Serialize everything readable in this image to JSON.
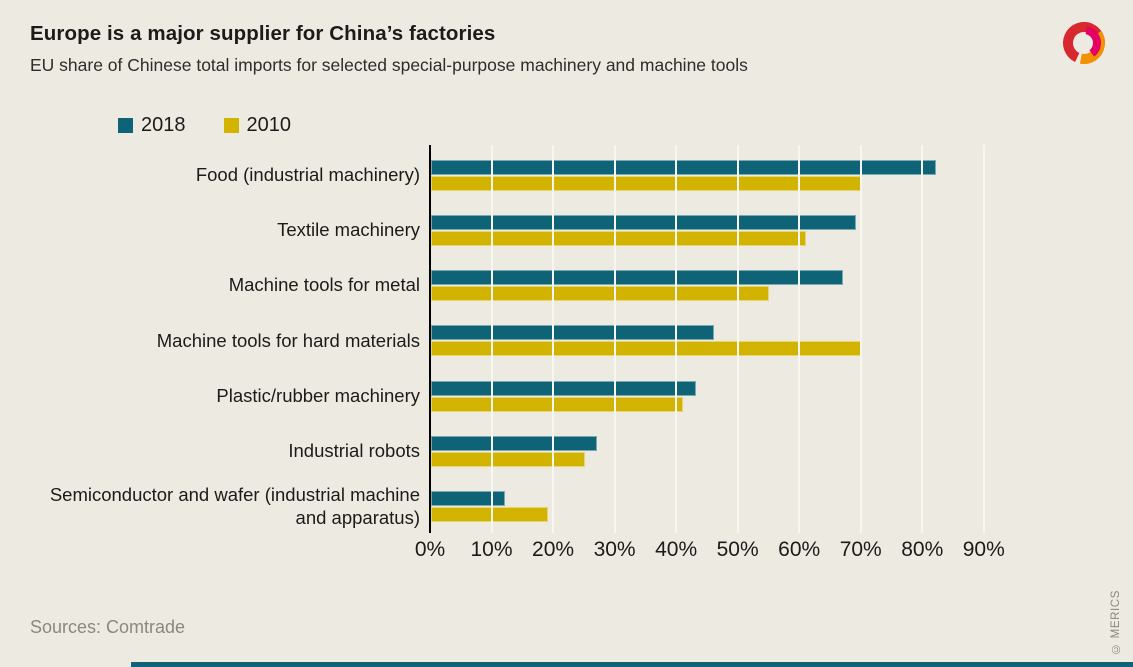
{
  "header": {
    "title": "Europe is a major supplier for China’s factories",
    "subtitle": "EU share of Chinese total imports for selected special-purpose machinery and machine tools"
  },
  "footer": {
    "sources": "Sources: Comtrade",
    "copyright": "© MERICS"
  },
  "brand": {
    "teal": "#0E6377",
    "yellow": "#D1B300",
    "background": "#EDEAE2",
    "text_dark": "#1C1B19",
    "text_gray": "#8D887E",
    "gridline": "#F8F6F1",
    "axis": "#000000",
    "logo_red": "#D7282F",
    "logo_orange": "#F39200",
    "logo_magenta": "#E50064"
  },
  "chart_data": {
    "type": "bar",
    "orientation": "horizontal",
    "title": "Europe is a major supplier for China’s factories",
    "subtitle": "EU share of Chinese total imports for selected special-purpose machinery and machine tools",
    "categories": [
      "Food (industrial machinery)",
      "Textile machinery",
      "Machine tools for metal",
      "Machine tools for hard materials",
      "Plastic/rubber machinery",
      "Industrial robots",
      "Semiconductor and wafer (industrial machine and apparatus)"
    ],
    "series": [
      {
        "name": "2018",
        "color": "#0E6377",
        "values": [
          82,
          69,
          67,
          46,
          43,
          27,
          12
        ]
      },
      {
        "name": "2010",
        "color": "#D1B300",
        "values": [
          70,
          61,
          55,
          70,
          41,
          25,
          19
        ]
      }
    ],
    "x_ticks": [
      "0%",
      "10%",
      "20%",
      "30%",
      "40%",
      "50%",
      "60%",
      "70%",
      "80%",
      "90%"
    ],
    "xlim": [
      0,
      93
    ],
    "unit": "%",
    "grid": true,
    "gridlines_over_bars": true,
    "legend_position": "top-left"
  }
}
